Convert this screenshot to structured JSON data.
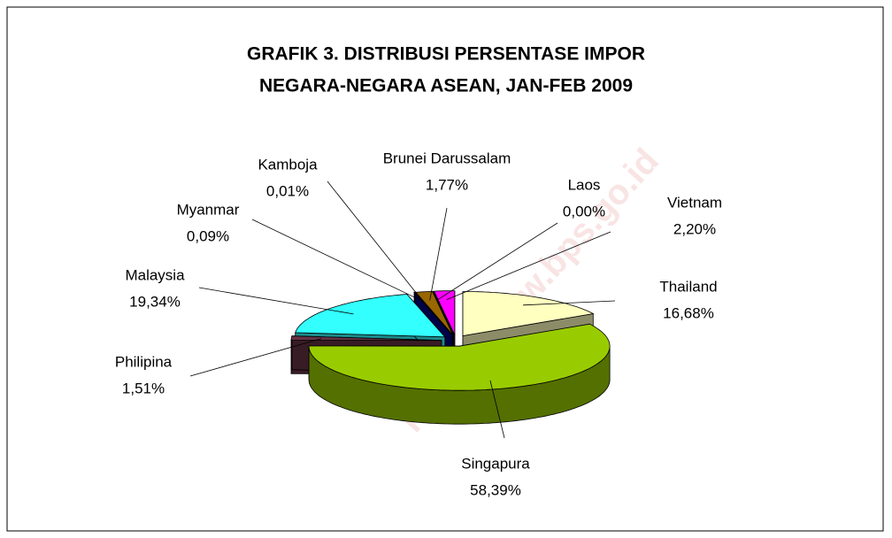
{
  "chart_data": {
    "type": "pie3d",
    "title": [
      "GRAFIK 3. DISTRIBUSI PERSENTASE IMPOR",
      "NEGARA-NEGARA ASEAN, JAN-FEB 2009"
    ],
    "watermark": "https://www.bps.go.id",
    "categories": [
      "Thailand",
      "Singapura",
      "Philipina",
      "Malaysia",
      "Myanmar",
      "Kamboja",
      "Brunei Darussalam",
      "Laos",
      "Vietnam"
    ],
    "values": [
      16.68,
      58.39,
      1.51,
      19.34,
      0.09,
      0.01,
      1.77,
      0.0,
      2.2
    ],
    "value_labels": [
      "16,68%",
      "58,39%",
      "1,51%",
      "19,34%",
      "0,09%",
      "0,01%",
      "1,77%",
      "0,00%",
      "2,20%"
    ],
    "colors": [
      "#ffffc0",
      "#99cc00",
      "#663344",
      "#33ffff",
      "#000080",
      "#333399",
      "#996600",
      "#0000ff",
      "#ff00ff"
    ]
  }
}
